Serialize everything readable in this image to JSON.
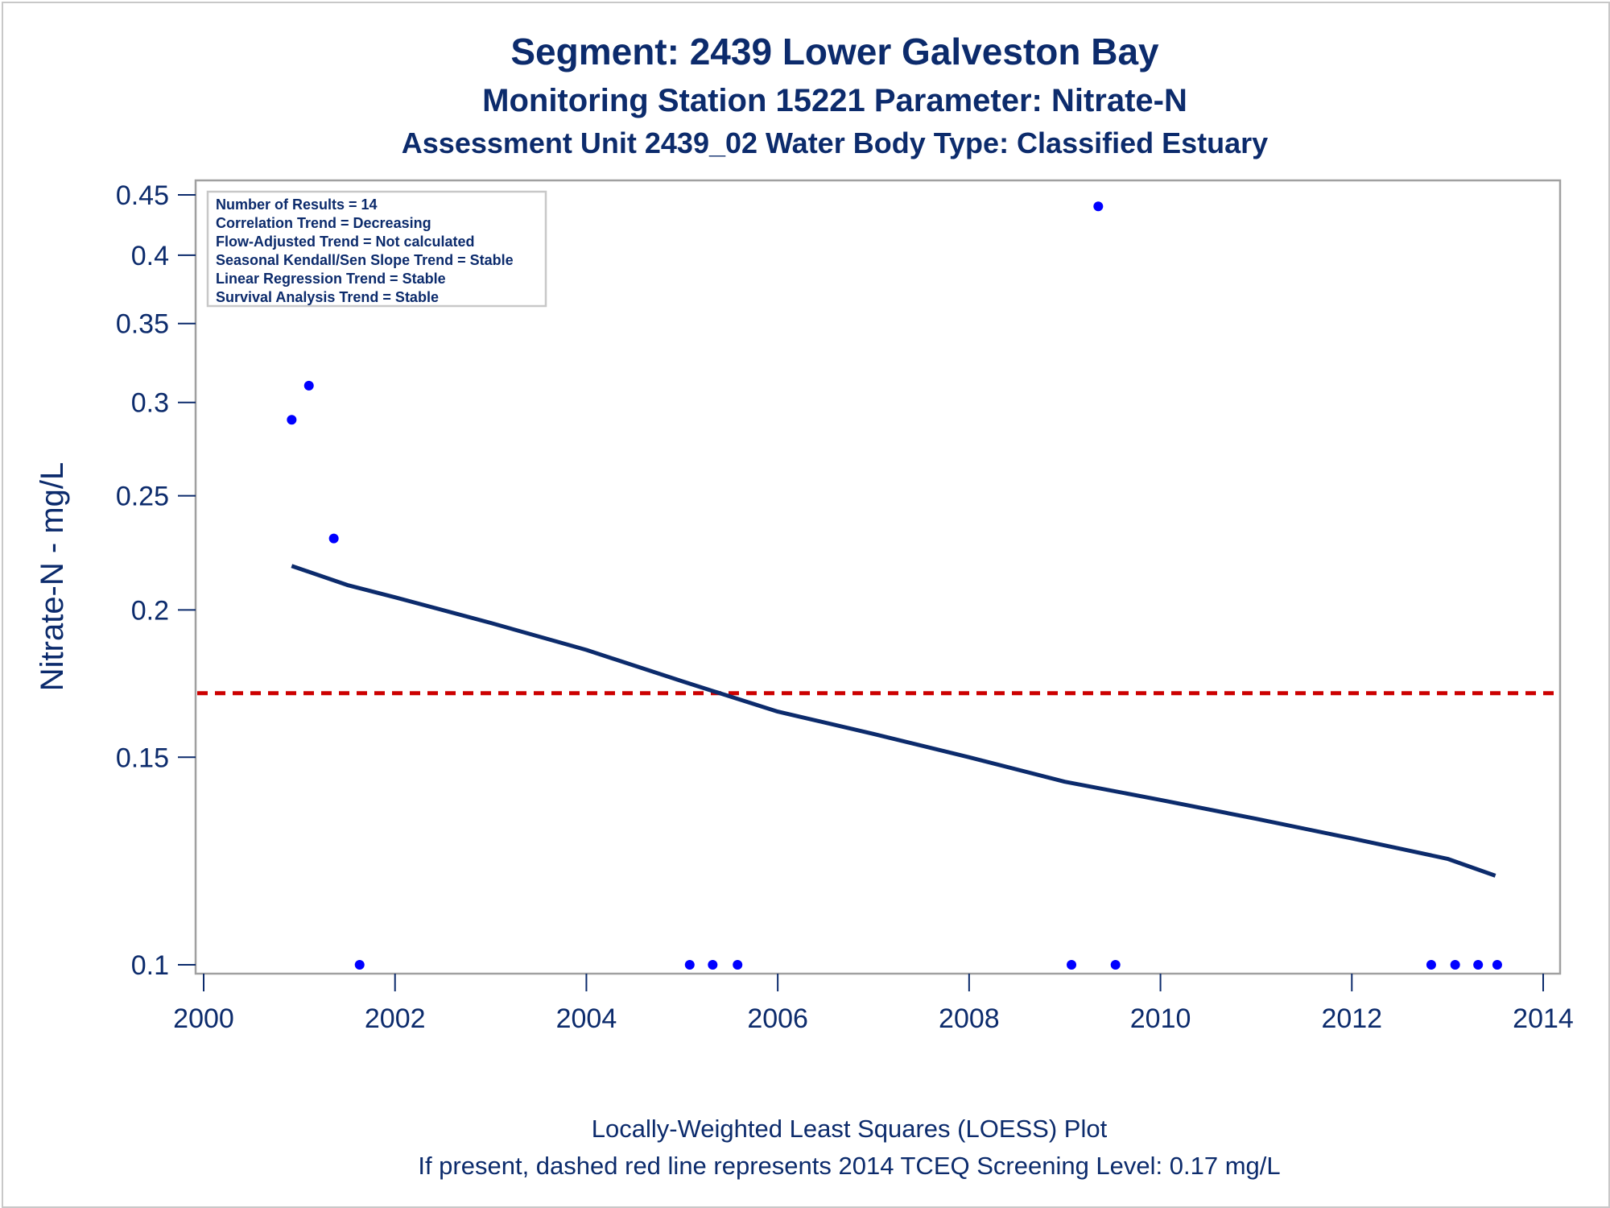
{
  "colors": {
    "text": "#0c2b6c",
    "frame": "#a0a0a0",
    "points": "#0000ff",
    "loess": "#0c2b6c",
    "screening": "#cc0000"
  },
  "titles": {
    "line1": "Segment: 2439  Lower Galveston Bay",
    "line2": "Monitoring Station 15221 Parameter: Nitrate-N",
    "line3": "Assessment Unit 2439_02   Water Body Type: Classified Estuary"
  },
  "stats_box": [
    "Number of Results = 14",
    "Correlation Trend = Decreasing",
    "Flow-Adjusted Trend = Not calculated",
    "Seasonal Kendall/Sen Slope Trend = Stable",
    "Linear Regression Trend = Stable",
    "Survival Analysis Trend = Stable"
  ],
  "footnotes": {
    "line1": "Locally-Weighted Least Squares (LOESS) Plot",
    "line2": "If present, dashed red line represents 2014 TCEQ Screening Level: 0.17 mg/L"
  },
  "chart_data": {
    "type": "scatter",
    "ylabel": "Nitrate-N - mg/L",
    "xlabel": "",
    "x_ticks": [
      2000,
      2002,
      2004,
      2006,
      2008,
      2010,
      2012,
      2014
    ],
    "x_tick_labels": [
      "2000",
      "2002",
      "2004",
      "2006",
      "2008",
      "2010",
      "2012",
      "2014"
    ],
    "xlim": [
      2000,
      2014.15
    ],
    "y_scale": "log",
    "y_ticks": [
      0.1,
      0.15,
      0.2,
      0.25,
      0.3,
      0.35,
      0.4,
      0.45
    ],
    "y_tick_labels": [
      "0.1",
      "0.15",
      "0.2",
      "0.25",
      "0.3",
      "0.35",
      "0.4",
      "0.45"
    ],
    "ylim": [
      0.098,
      0.455
    ],
    "grid": false,
    "points": [
      {
        "x": 2000.92,
        "y": 0.29
      },
      {
        "x": 2001.1,
        "y": 0.31
      },
      {
        "x": 2001.36,
        "y": 0.23
      },
      {
        "x": 2001.63,
        "y": 0.1
      },
      {
        "x": 2005.08,
        "y": 0.1
      },
      {
        "x": 2005.32,
        "y": 0.1
      },
      {
        "x": 2005.58,
        "y": 0.1
      },
      {
        "x": 2009.07,
        "y": 0.1
      },
      {
        "x": 2009.35,
        "y": 0.44
      },
      {
        "x": 2009.53,
        "y": 0.1
      },
      {
        "x": 2012.83,
        "y": 0.1
      },
      {
        "x": 2013.08,
        "y": 0.1
      },
      {
        "x": 2013.32,
        "y": 0.1
      },
      {
        "x": 2013.52,
        "y": 0.1
      }
    ],
    "loess_curve": [
      {
        "x": 2000.92,
        "y": 0.218
      },
      {
        "x": 2001.5,
        "y": 0.21
      },
      {
        "x": 2002.0,
        "y": 0.205
      },
      {
        "x": 2003.0,
        "y": 0.195
      },
      {
        "x": 2004.0,
        "y": 0.185
      },
      {
        "x": 2005.0,
        "y": 0.174
      },
      {
        "x": 2006.0,
        "y": 0.164
      },
      {
        "x": 2007.0,
        "y": 0.157
      },
      {
        "x": 2008.0,
        "y": 0.15
      },
      {
        "x": 2009.0,
        "y": 0.143
      },
      {
        "x": 2010.0,
        "y": 0.138
      },
      {
        "x": 2011.0,
        "y": 0.133
      },
      {
        "x": 2012.0,
        "y": 0.128
      },
      {
        "x": 2013.0,
        "y": 0.123
      },
      {
        "x": 2013.5,
        "y": 0.119
      }
    ],
    "screening_level": {
      "y": 0.17,
      "style": "dashed"
    }
  }
}
